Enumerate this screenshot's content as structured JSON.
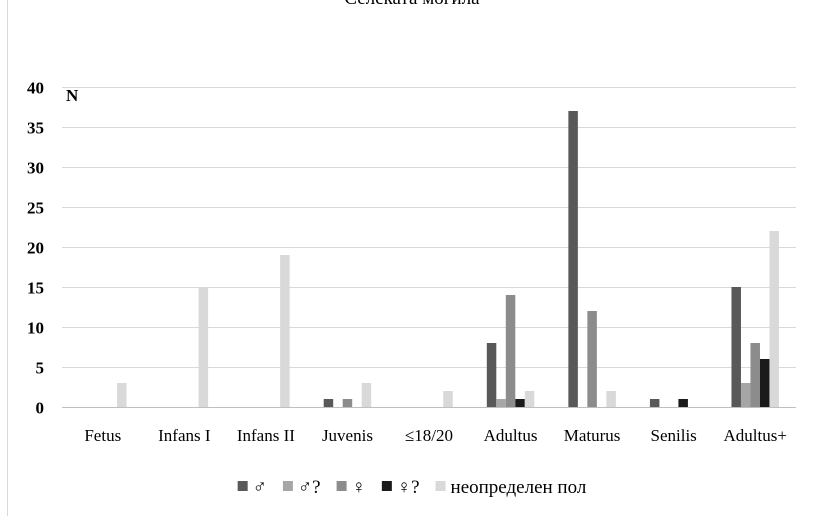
{
  "chart_data": {
    "type": "bar",
    "title": "Селската могила",
    "ylabel": "N",
    "xlabel": "",
    "ylim": [
      0,
      40
    ],
    "yticks": [
      0,
      5,
      10,
      15,
      20,
      25,
      30,
      35,
      40
    ],
    "grid": true,
    "legend_position": "bottom",
    "categories": [
      "Fetus",
      "Infans I",
      "Infans II",
      "Juvenis",
      "≤18/20",
      "Adultus",
      "Maturus",
      "Senilis",
      "Adultus+"
    ],
    "series": [
      {
        "name": "♂",
        "color": "#595959",
        "values": [
          0,
          0,
          0,
          1,
          0,
          8,
          37,
          1,
          15
        ]
      },
      {
        "name": "♂?",
        "color": "#a6a6a6",
        "values": [
          0,
          0,
          0,
          0,
          0,
          1,
          0,
          0,
          3
        ]
      },
      {
        "name": "♀",
        "color": "#8c8c8c",
        "values": [
          0,
          0,
          0,
          1,
          0,
          14,
          12,
          0,
          8
        ]
      },
      {
        "name": "♀?",
        "color": "#1a1a1a",
        "values": [
          0,
          0,
          0,
          0,
          0,
          1,
          0,
          1,
          6
        ]
      },
      {
        "name": "неопределен пол",
        "color": "#d9d9d9",
        "values": [
          3,
          15,
          19,
          3,
          2,
          2,
          2,
          0,
          22
        ]
      }
    ]
  }
}
